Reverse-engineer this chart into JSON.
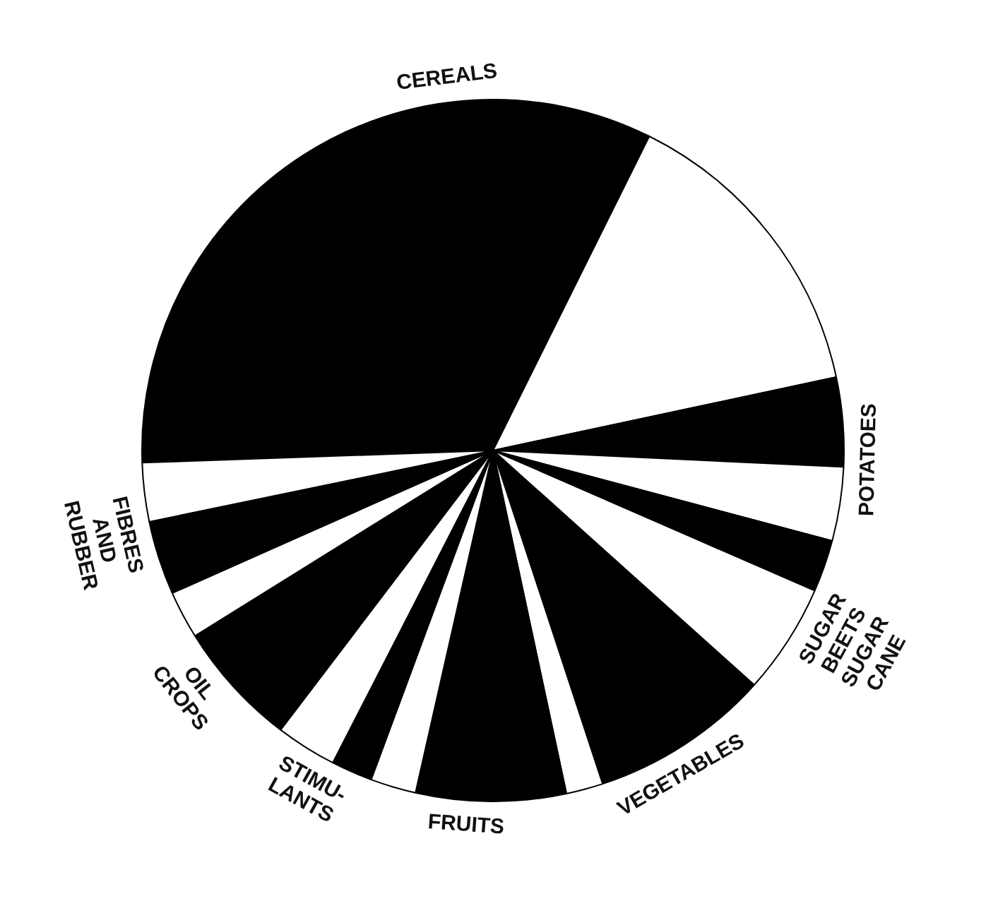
{
  "chart_data": {
    "type": "pie",
    "categories": [
      "CEREALS",
      null,
      "POTATOES",
      null,
      "SUGAR\nBEETS\nSUGAR\nCANE",
      null,
      "VEGETABLES",
      null,
      "FRUITS",
      null,
      "STIMU-\nLANTS",
      null,
      "OIL\nCROPS",
      null,
      "FIBRES\nAND\nRUBBER",
      null
    ],
    "values": [
      32.9,
      14.3,
      4.1,
      3.4,
      2.4,
      5.1,
      8.3,
      1.7,
      6.9,
      2.1,
      1.9,
      2.8,
      5.8,
      2.2,
      3.4,
      2.7
    ],
    "colors": [
      "#000000",
      "#ffffff",
      "#000000",
      "#ffffff",
      "#000000",
      "#ffffff",
      "#000000",
      "#ffffff",
      "#000000",
      "#ffffff",
      "#000000",
      "#ffffff",
      "#000000",
      "#ffffff",
      "#000000",
      "#ffffff"
    ],
    "legend": false
  }
}
